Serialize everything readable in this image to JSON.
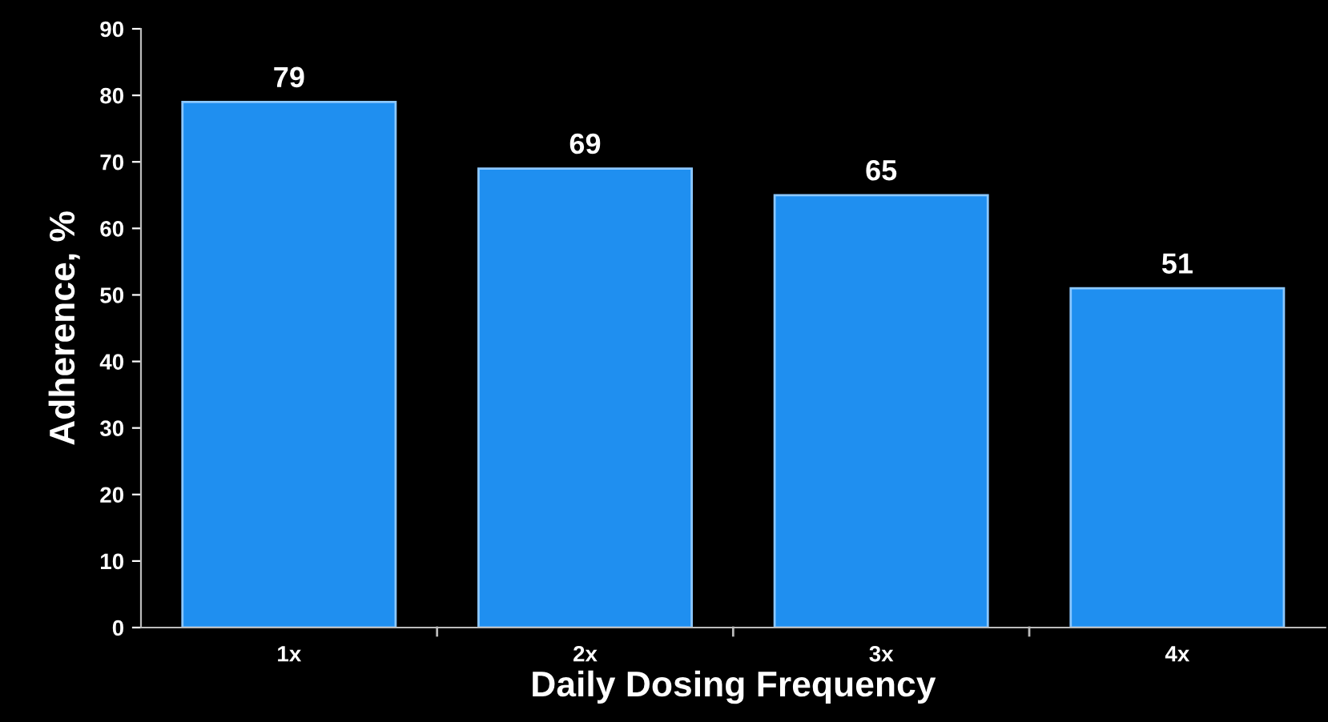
{
  "chart_data": {
    "type": "bar",
    "xlabel": "Daily Dosing Frequency",
    "ylabel": "Adherence, %",
    "categories": [
      "1x",
      "2x",
      "3x",
      "4x"
    ],
    "values": [
      79,
      69,
      65,
      51
    ],
    "color": "#1f8ff0",
    "ylim": [
      0,
      90
    ],
    "yticks": [
      0,
      10,
      20,
      30,
      40,
      50,
      60,
      70,
      80,
      90
    ],
    "data_labels": true,
    "grid": false,
    "legend": false
  }
}
